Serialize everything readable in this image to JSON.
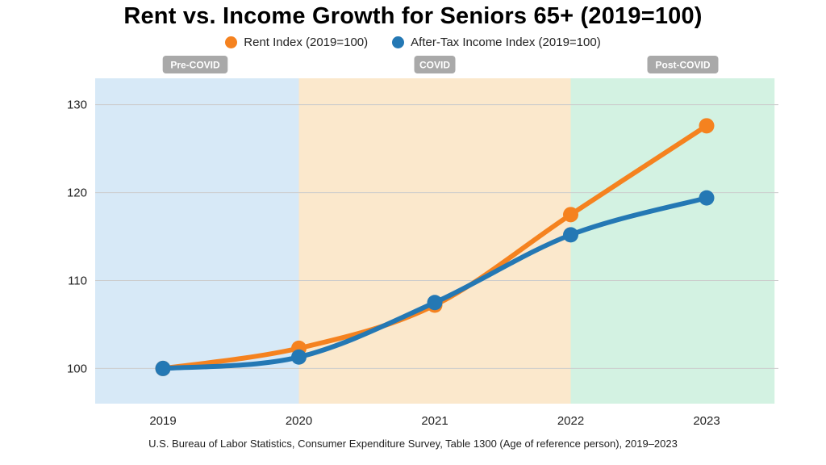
{
  "colors": {
    "rent": "#f5821f",
    "income": "#2478b4",
    "phase_pre": "#d7e9f7",
    "phase_covid": "#fbe8cc",
    "phase_post": "#d3f2e2",
    "phase_badge": "#a9a9a9",
    "grid": "#cccccc"
  },
  "chart_data": {
    "type": "line",
    "title": "Rent vs. Income Growth for Seniors 65+ (2019=100)",
    "x": [
      "2019",
      "2020",
      "2021",
      "2022",
      "2023"
    ],
    "ylim": [
      96,
      133
    ],
    "yticks": [
      100,
      110,
      120,
      130
    ],
    "grid": true,
    "legend_position": "top-center",
    "series": [
      {
        "name": "Rent Index (2019=100)",
        "color_key": "rent",
        "values": [
          100,
          102.3,
          107.2,
          117.5,
          127.6
        ]
      },
      {
        "name": "After-Tax Income Index (2019=100)",
        "color_key": "income",
        "values": [
          100,
          101.3,
          107.5,
          115.2,
          119.4
        ]
      }
    ],
    "phases": [
      {
        "label": "Pre-COVID",
        "color_key": "phase_pre",
        "from": 2018.5,
        "to": 2020
      },
      {
        "label": "COVID",
        "color_key": "phase_covid",
        "from": 2020,
        "to": 2022
      },
      {
        "label": "Post-COVID",
        "color_key": "phase_post",
        "from": 2022,
        "to": 2023.5
      }
    ],
    "source": "U.S. Bureau of Labor Statistics, Consumer Expenditure Survey, Table 1300 (Age of reference person), 2019–2023"
  }
}
